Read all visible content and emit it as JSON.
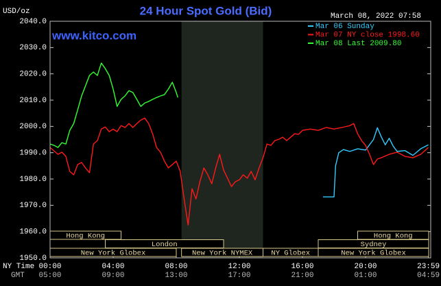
{
  "chart_data": {
    "type": "line",
    "title": "24 Hour Spot Gold (Bid)",
    "subtitle": "March 08, 2022 07:58",
    "y_label": "USD/oz",
    "watermark": "www.kitco.com",
    "x_row_labels": [
      "NY Time",
      "GMT"
    ],
    "xlim": [
      0,
      24
    ],
    "ylim": [
      1950,
      2040
    ],
    "grid": false,
    "xticks": [
      {
        "value": 0,
        "label": "00:00"
      },
      {
        "value": 4,
        "label": "04:00"
      },
      {
        "value": 8,
        "label": "08:00"
      },
      {
        "value": 12,
        "label": "12:00"
      },
      {
        "value": 16,
        "label": "16:00"
      },
      {
        "value": 20,
        "label": "20:00"
      },
      {
        "value": 23.983,
        "label": "23:59"
      }
    ],
    "x2ticks": [
      {
        "value": 0,
        "label": "05:00"
      },
      {
        "value": 4,
        "label": "09:00"
      },
      {
        "value": 8,
        "label": "13:00"
      },
      {
        "value": 12,
        "label": "17:00"
      },
      {
        "value": 16,
        "label": "21:00"
      },
      {
        "value": 20,
        "label": "01:00"
      },
      {
        "value": 23.983,
        "label": "04:59"
      }
    ],
    "yticks": [
      {
        "value": 1950,
        "label": "1950.0"
      },
      {
        "value": 1960,
        "label": "1960.0"
      },
      {
        "value": 1970,
        "label": "1970.0"
      },
      {
        "value": 1980,
        "label": "1980.0"
      },
      {
        "value": 1990,
        "label": "1990.0"
      },
      {
        "value": 2000,
        "label": "2000.0"
      },
      {
        "value": 2010,
        "label": "2010.0"
      },
      {
        "value": 2020,
        "label": "2020.0"
      },
      {
        "value": 2030,
        "label": "2030.0"
      },
      {
        "value": 2040,
        "label": "2040.0"
      }
    ],
    "highlight_band": [
      8.333,
      13.5
    ],
    "sessions": [
      [
        {
          "label": "Hong Kong",
          "start": 0,
          "end": 4.5
        },
        {
          "label": "Hong Kong",
          "start": 19.5,
          "end": 24
        }
      ],
      [
        {
          "label": "London",
          "start": 3.5,
          "end": 11
        },
        {
          "label": "Sydney",
          "start": 17,
          "end": 24
        }
      ],
      [
        {
          "label": "New York Globex",
          "start": 0,
          "end": 8
        },
        {
          "label": "New York NYMEX",
          "start": 8.333,
          "end": 13.5
        },
        {
          "label": "NY Globex",
          "start": 13.5,
          "end": 17
        },
        {
          "label": "New York Globex",
          "start": 17,
          "end": 24
        }
      ]
    ],
    "series": [
      {
        "name": "Mar 06 Sunday",
        "color": "#33ccff",
        "x": [
          17.3,
          18.0,
          18.1,
          18.3,
          18.6,
          19.0,
          19.5,
          20.0,
          20.5,
          20.75,
          21.0,
          21.25,
          21.5,
          21.75,
          22.0,
          22.5,
          23.0,
          23.5,
          23.98
        ],
        "values": [
          1973.2,
          1973.2,
          1985.0,
          1990.0,
          1991.2,
          1990.5,
          1991.5,
          1991.0,
          1995.0,
          1999.5,
          1996.0,
          1993.0,
          1995.5,
          1992.5,
          1990.5,
          1990.8,
          1989.0,
          1991.5,
          1993.0
        ]
      },
      {
        "name": "Mar 07 NY close 1998.60",
        "color": "#ff1a1a",
        "x": [
          0,
          0.25,
          0.5,
          0.75,
          1.0,
          1.25,
          1.5,
          1.75,
          2.0,
          2.25,
          2.5,
          2.75,
          3.0,
          3.25,
          3.5,
          3.75,
          4.0,
          4.25,
          4.5,
          4.75,
          5.0,
          5.25,
          5.5,
          5.75,
          6.0,
          6.25,
          6.5,
          6.75,
          7.0,
          7.25,
          7.5,
          7.75,
          8.0,
          8.25,
          8.5,
          8.75,
          9.0,
          9.25,
          9.5,
          9.75,
          10.0,
          10.25,
          10.5,
          10.75,
          11.0,
          11.25,
          11.5,
          11.75,
          12.0,
          12.25,
          12.5,
          12.75,
          13.0,
          13.25,
          13.5,
          13.75,
          14.0,
          14.25,
          14.5,
          14.75,
          15.0,
          15.25,
          15.5,
          15.75,
          16.0,
          16.5,
          17.0,
          17.5,
          18.0,
          18.5,
          19.0,
          19.25,
          19.5,
          19.75,
          20.0,
          20.25,
          20.5,
          20.75,
          21.0,
          21.5,
          22.0,
          22.5,
          23.0,
          23.5,
          23.98
        ],
        "values": [
          1992.0,
          1990.7,
          1989.4,
          1990.2,
          1988.6,
          1982.9,
          1981.6,
          1985.5,
          1986.3,
          1984.2,
          1982.4,
          1993.3,
          1994.6,
          1999.0,
          1999.8,
          1998.0,
          1999.0,
          1998.0,
          2000.3,
          1999.6,
          2001.1,
          1999.6,
          2001.1,
          2002.4,
          2003.2,
          2001.1,
          1997.2,
          1992.0,
          1990.2,
          1986.8,
          1984.2,
          1985.5,
          1986.8,
          1982.9,
          1972.4,
          1962.5,
          1976.3,
          1972.4,
          1979.0,
          1984.2,
          1981.6,
          1978.2,
          1984.2,
          1989.4,
          1983.4,
          1980.3,
          1977.1,
          1979.0,
          1979.7,
          1981.6,
          1980.3,
          1982.9,
          1979.7,
          1984.2,
          1988.1,
          1993.3,
          1992.8,
          1994.6,
          1995.1,
          1995.9,
          1994.6,
          1995.9,
          1997.2,
          1997.0,
          1998.5,
          1999.0,
          1998.5,
          1999.6,
          1999.0,
          1999.6,
          2000.3,
          2001.1,
          1997.2,
          1994.6,
          1992.8,
          1989.4,
          1985.5,
          1987.6,
          1988.1,
          1989.4,
          1990.2,
          1988.6,
          1988.1,
          1989.4,
          1992.0
        ]
      },
      {
        "name": "Mar 08 Last 2009.80",
        "color": "#33ff33",
        "x": [
          0,
          0.25,
          0.5,
          0.75,
          1.0,
          1.25,
          1.5,
          1.75,
          2.0,
          2.25,
          2.5,
          2.75,
          3.0,
          3.25,
          3.5,
          3.75,
          4.0,
          4.25,
          4.5,
          4.75,
          5.0,
          5.25,
          5.5,
          5.75,
          6.0,
          6.25,
          6.5,
          6.75,
          7.0,
          7.25,
          7.5,
          7.75,
          8.0,
          8.1
        ],
        "values": [
          1993.3,
          1992.8,
          1992.0,
          1993.8,
          1993.3,
          1998.5,
          2001.1,
          2006.3,
          2011.6,
          2015.5,
          2019.4,
          2020.7,
          2019.4,
          2024.1,
          2022.0,
          2019.4,
          2014.2,
          2007.6,
          2010.3,
          2011.6,
          2013.6,
          2012.9,
          2010.3,
          2007.6,
          2008.9,
          2009.5,
          2010.3,
          2011.0,
          2011.6,
          2012.1,
          2014.2,
          2016.8,
          2012.9,
          2011.0
        ]
      }
    ]
  }
}
